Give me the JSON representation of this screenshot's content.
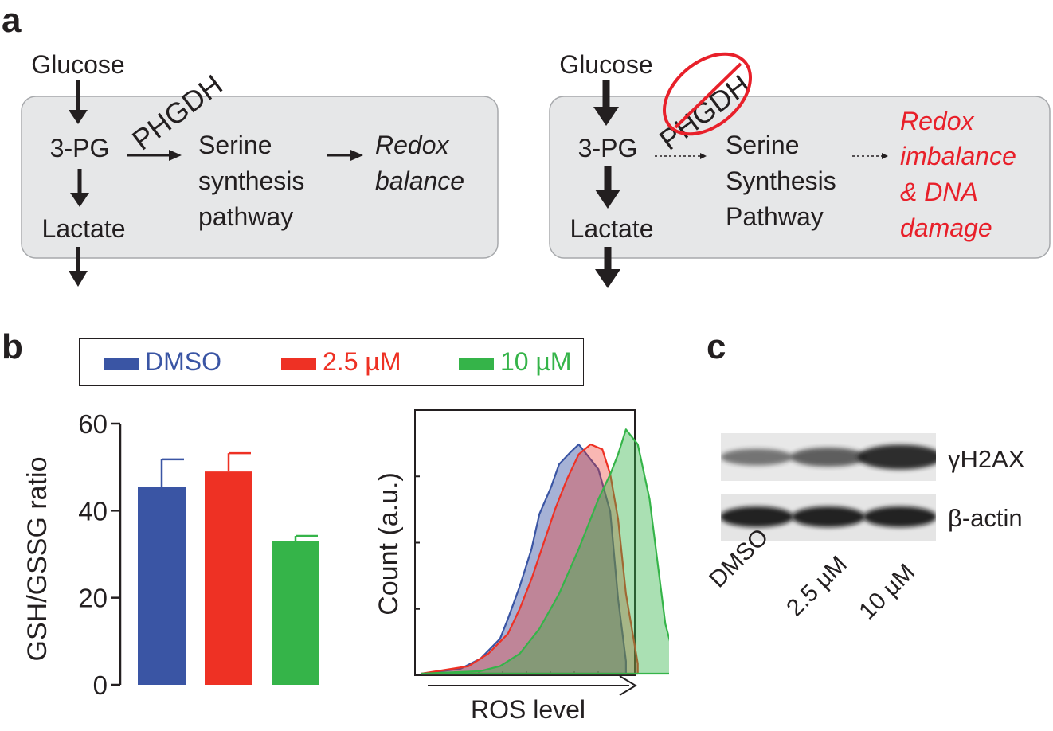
{
  "panel_labels": {
    "a": "a",
    "b": "b",
    "c": "c"
  },
  "colors": {
    "dmso": "#3a55a4",
    "low": "#ee3124",
    "high": "#35b449",
    "box": "#e6e7e8",
    "text": "#231f20",
    "red": "#e8202a"
  },
  "panel_a": {
    "left": {
      "glucose": "Glucose",
      "enzyme": "PHGDH",
      "intermediate": "3-PG",
      "product_line1": "Serine",
      "product_line2": "synthesis",
      "product_line3": "pathway",
      "outcome_line1": "Redox",
      "outcome_line2": "balance",
      "lactate": "Lactate"
    },
    "right": {
      "glucose": "Glucose",
      "enzyme": "PHGDH",
      "intermediate": "3-PG",
      "product_line1": "Serine",
      "product_line2": "Synthesis",
      "product_line3": "Pathway",
      "outcome_line1": "Redox",
      "outcome_line2": "imbalance",
      "outcome_line3": "& DNA",
      "outcome_line4": "damage",
      "lactate": "Lactate"
    }
  },
  "legend": {
    "entries": [
      "DMSO",
      "2.5 µM",
      "10 µM"
    ]
  },
  "chart_data": [
    {
      "type": "bar",
      "categories": [
        "DMSO",
        "2.5 µM",
        "10 µM"
      ],
      "values": [
        45.5,
        49,
        33
      ],
      "errors": [
        6.3,
        4.2,
        1.2
      ],
      "ylabel": "GSH/GSSG ratio",
      "ylim": [
        0,
        60
      ],
      "yticks": [
        0,
        20,
        40,
        60
      ]
    },
    {
      "type": "area",
      "xlabel": "ROS level",
      "ylabel": "Count (a.u.)",
      "series": [
        {
          "name": "DMSO",
          "x": [
            0,
            10,
            15,
            20,
            22,
            25,
            28,
            30,
            33,
            35,
            38,
            40,
            45,
            48,
            50,
            52
          ],
          "y": [
            0,
            2,
            6,
            14,
            22,
            35,
            50,
            64,
            75,
            84,
            89,
            92,
            82,
            65,
            30,
            5
          ]
        },
        {
          "name": "2.5 µM",
          "x": [
            0,
            12,
            17,
            22,
            25,
            28,
            31,
            34,
            37,
            40,
            43,
            46,
            48,
            50,
            52,
            55
          ],
          "y": [
            0,
            3,
            8,
            16,
            26,
            38,
            52,
            66,
            78,
            88,
            92,
            90,
            80,
            62,
            32,
            4
          ]
        },
        {
          "name": "10 µM",
          "x": [
            0,
            15,
            20,
            25,
            30,
            35,
            40,
            45,
            48,
            50,
            52,
            55,
            58,
            60,
            62,
            65
          ],
          "y": [
            0,
            1,
            3,
            8,
            18,
            32,
            50,
            70,
            80,
            88,
            98,
            92,
            70,
            45,
            20,
            2
          ]
        }
      ]
    }
  ],
  "blot": {
    "bands": [
      "γH2AX",
      "β-actin"
    ],
    "lanes": [
      "DMSO",
      "2.5 µM",
      "10 µM"
    ],
    "gh2ax_intensity": [
      0.45,
      0.6,
      0.95
    ],
    "actin_intensity": [
      1,
      1,
      1
    ]
  }
}
